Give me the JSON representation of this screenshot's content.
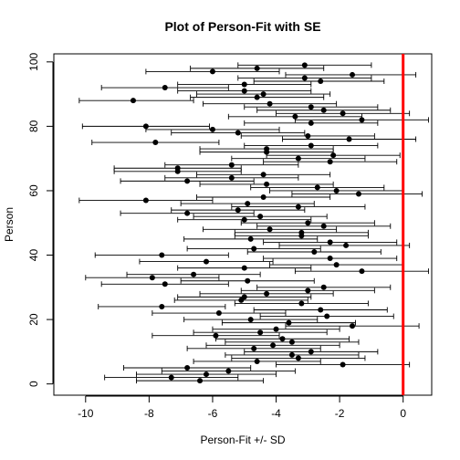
{
  "chart_data": {
    "type": "scatter",
    "title": "Plot of Person-Fit with SE",
    "xlabel": "Person-Fit +/- SD",
    "ylabel": "Person",
    "xlim": [
      -11,
      0.9
    ],
    "ylim": [
      -3.5,
      102.5
    ],
    "xticks": [
      -10,
      -8,
      -6,
      -4,
      -2,
      0
    ],
    "yticks": [
      0,
      20,
      40,
      60,
      80,
      100
    ],
    "reference_line": {
      "x": 0,
      "color": "#ff0000"
    },
    "grid": false,
    "errorbar_color": "#000000",
    "point_color": "#000000",
    "points": [
      {
        "person": 1,
        "fit": -6.4,
        "lo": -8.4,
        "hi": -4.4
      },
      {
        "person": 2,
        "fit": -7.3,
        "lo": -9.4,
        "hi": -5.2
      },
      {
        "person": 3,
        "fit": -6.2,
        "lo": -8.4,
        "hi": -4.0
      },
      {
        "person": 4,
        "fit": -5.5,
        "lo": -7.6,
        "hi": -3.4
      },
      {
        "person": 5,
        "fit": -6.8,
        "lo": -8.8,
        "hi": -4.8
      },
      {
        "person": 6,
        "fit": -1.9,
        "lo": -4.0,
        "hi": 0.2
      },
      {
        "person": 7,
        "fit": -4.6,
        "lo": -6.6,
        "hi": -2.6
      },
      {
        "person": 8,
        "fit": -3.3,
        "lo": -5.4,
        "hi": -1.2
      },
      {
        "person": 9,
        "fit": -3.5,
        "lo": -5.6,
        "hi": -1.4
      },
      {
        "person": 10,
        "fit": -2.9,
        "lo": -5.0,
        "hi": -0.8
      },
      {
        "person": 11,
        "fit": -4.7,
        "lo": -6.8,
        "hi": -2.6
      },
      {
        "person": 12,
        "fit": -4.1,
        "lo": -6.2,
        "hi": -2.0
      },
      {
        "person": 13,
        "fit": -3.5,
        "lo": -5.6,
        "hi": -1.4
      },
      {
        "person": 14,
        "fit": -3.8,
        "lo": -5.9,
        "hi": -1.7
      },
      {
        "person": 15,
        "fit": -5.9,
        "lo": -7.9,
        "hi": -3.9
      },
      {
        "person": 16,
        "fit": -4.5,
        "lo": -6.6,
        "hi": -2.4
      },
      {
        "person": 17,
        "fit": -4.0,
        "lo": -6.0,
        "hi": -2.0
      },
      {
        "person": 18,
        "fit": -1.6,
        "lo": -3.7,
        "hi": 0.5
      },
      {
        "person": 19,
        "fit": -3.6,
        "lo": -5.7,
        "hi": -1.5
      },
      {
        "person": 20,
        "fit": -4.8,
        "lo": -6.9,
        "hi": -2.7
      },
      {
        "person": 21,
        "fit": -2.4,
        "lo": -4.5,
        "hi": -0.3
      },
      {
        "person": 22,
        "fit": -5.8,
        "lo": -7.9,
        "hi": -3.7
      },
      {
        "person": 23,
        "fit": -2.6,
        "lo": -4.7,
        "hi": -0.5
      },
      {
        "person": 24,
        "fit": -7.6,
        "lo": -9.6,
        "hi": -5.6
      },
      {
        "person": 25,
        "fit": -3.2,
        "lo": -5.3,
        "hi": -1.1
      },
      {
        "person": 26,
        "fit": -5.1,
        "lo": -7.2,
        "hi": -3.0
      },
      {
        "person": 27,
        "fit": -5.0,
        "lo": -7.1,
        "hi": -2.9
      },
      {
        "person": 28,
        "fit": -4.3,
        "lo": -6.4,
        "hi": -2.2
      },
      {
        "person": 29,
        "fit": -3.0,
        "lo": -5.1,
        "hi": -0.9
      },
      {
        "person": 30,
        "fit": -2.5,
        "lo": -4.6,
        "hi": -0.4
      },
      {
        "person": 31,
        "fit": -7.5,
        "lo": -9.5,
        "hi": -5.5
      },
      {
        "person": 32,
        "fit": -4.9,
        "lo": -7.0,
        "hi": -2.8
      },
      {
        "person": 33,
        "fit": -7.9,
        "lo": -10.0,
        "hi": -5.8
      },
      {
        "person": 34,
        "fit": -6.6,
        "lo": -8.7,
        "hi": -4.5
      },
      {
        "person": 35,
        "fit": -1.3,
        "lo": -3.4,
        "hi": 0.8
      },
      {
        "person": 36,
        "fit": -5.0,
        "lo": -7.1,
        "hi": -2.9
      },
      {
        "person": 37,
        "fit": -2.1,
        "lo": -4.2,
        "hi": 0.0
      },
      {
        "person": 38,
        "fit": -6.2,
        "lo": -8.3,
        "hi": -4.1
      },
      {
        "person": 39,
        "fit": -2.3,
        "lo": -4.4,
        "hi": -0.2
      },
      {
        "person": 40,
        "fit": -7.6,
        "lo": -9.7,
        "hi": -5.5
      },
      {
        "person": 41,
        "fit": -2.8,
        "lo": -4.9,
        "hi": -0.7
      },
      {
        "person": 42,
        "fit": -4.7,
        "lo": -6.8,
        "hi": -2.6
      },
      {
        "person": 43,
        "fit": -1.8,
        "lo": -3.9,
        "hi": 0.2
      },
      {
        "person": 44,
        "fit": -2.3,
        "lo": -4.4,
        "hi": -0.2
      },
      {
        "person": 45,
        "fit": -4.8,
        "lo": -6.9,
        "hi": -2.7
      },
      {
        "person": 46,
        "fit": -3.2,
        "lo": -5.3,
        "hi": -1.1
      },
      {
        "person": 47,
        "fit": -3.2,
        "lo": -5.3,
        "hi": -1.1
      },
      {
        "person": 48,
        "fit": -4.2,
        "lo": -6.3,
        "hi": -2.1
      },
      {
        "person": 49,
        "fit": -2.5,
        "lo": -4.6,
        "hi": -0.4
      },
      {
        "person": 50,
        "fit": -3.0,
        "lo": -5.1,
        "hi": -0.9
      },
      {
        "person": 51,
        "fit": -5.0,
        "lo": -7.1,
        "hi": -2.9
      },
      {
        "person": 52,
        "fit": -4.5,
        "lo": -6.6,
        "hi": -2.4
      },
      {
        "person": 53,
        "fit": -6.8,
        "lo": -8.9,
        "hi": -4.7
      },
      {
        "person": 54,
        "fit": -5.2,
        "lo": -7.3,
        "hi": -3.1
      },
      {
        "person": 55,
        "fit": -3.3,
        "lo": -5.4,
        "hi": -1.2
      },
      {
        "person": 56,
        "fit": -4.9,
        "lo": -7.0,
        "hi": -2.8
      },
      {
        "person": 57,
        "fit": -8.1,
        "lo": -10.2,
        "hi": -6.0
      },
      {
        "person": 58,
        "fit": -4.4,
        "lo": -6.5,
        "hi": -2.3
      },
      {
        "person": 59,
        "fit": -1.4,
        "lo": -3.5,
        "hi": 0.6
      },
      {
        "person": 60,
        "fit": -2.1,
        "lo": -4.2,
        "hi": 0.0
      },
      {
        "person": 61,
        "fit": -2.7,
        "lo": -4.8,
        "hi": -0.6
      },
      {
        "person": 62,
        "fit": -4.3,
        "lo": -6.4,
        "hi": -2.2
      },
      {
        "person": 63,
        "fit": -6.8,
        "lo": -8.9,
        "hi": -4.7
      },
      {
        "person": 64,
        "fit": -5.4,
        "lo": -7.5,
        "hi": -3.3
      },
      {
        "person": 65,
        "fit": -4.4,
        "lo": -6.5,
        "hi": -2.3
      },
      {
        "person": 66,
        "fit": -7.1,
        "lo": -9.1,
        "hi": -5.1
      },
      {
        "person": 67,
        "fit": -7.1,
        "lo": -9.1,
        "hi": -5.1
      },
      {
        "person": 68,
        "fit": -5.4,
        "lo": -7.5,
        "hi": -3.3
      },
      {
        "person": 69,
        "fit": -2.3,
        "lo": -4.4,
        "hi": -0.2
      },
      {
        "person": 70,
        "fit": -3.3,
        "lo": -5.4,
        "hi": -1.2
      },
      {
        "person": 71,
        "fit": -2.2,
        "lo": -4.3,
        "hi": -0.1
      },
      {
        "person": 72,
        "fit": -4.3,
        "lo": -6.4,
        "hi": -2.2
      },
      {
        "person": 73,
        "fit": -4.3,
        "lo": -6.4,
        "hi": -2.2
      },
      {
        "person": 74,
        "fit": -2.9,
        "lo": -5.0,
        "hi": -0.8
      },
      {
        "person": 75,
        "fit": -7.8,
        "lo": -9.8,
        "hi": -5.8
      },
      {
        "person": 76,
        "fit": -1.7,
        "lo": -3.8,
        "hi": 0.4
      },
      {
        "person": 77,
        "fit": -3.0,
        "lo": -5.1,
        "hi": -0.9
      },
      {
        "person": 78,
        "fit": -5.2,
        "lo": -7.3,
        "hi": -3.1
      },
      {
        "person": 79,
        "fit": -6.0,
        "lo": -8.1,
        "hi": -3.9
      },
      {
        "person": 80,
        "fit": -8.1,
        "lo": -10.1,
        "hi": -6.1
      },
      {
        "person": 81,
        "fit": -2.9,
        "lo": -5.0,
        "hi": -0.8
      },
      {
        "person": 82,
        "fit": -1.3,
        "lo": -3.4,
        "hi": 0.8
      },
      {
        "person": 83,
        "fit": -3.4,
        "lo": -5.5,
        "hi": -1.3
      },
      {
        "person": 84,
        "fit": -1.9,
        "lo": -4.0,
        "hi": 0.2
      },
      {
        "person": 85,
        "fit": -2.5,
        "lo": -4.6,
        "hi": -0.4
      },
      {
        "person": 86,
        "fit": -2.9,
        "lo": -5.0,
        "hi": -0.8
      },
      {
        "person": 87,
        "fit": -4.2,
        "lo": -6.3,
        "hi": -2.1
      },
      {
        "person": 88,
        "fit": -8.5,
        "lo": -10.2,
        "hi": -6.6
      },
      {
        "person": 89,
        "fit": -4.6,
        "lo": -6.7,
        "hi": -2.5
      },
      {
        "person": 90,
        "fit": -4.4,
        "lo": -6.5,
        "hi": -2.3
      },
      {
        "person": 91,
        "fit": -5.0,
        "lo": -7.1,
        "hi": -2.9
      },
      {
        "person": 92,
        "fit": -7.5,
        "lo": -9.5,
        "hi": -5.5
      },
      {
        "person": 93,
        "fit": -5.0,
        "lo": -7.1,
        "hi": -2.9
      },
      {
        "person": 94,
        "fit": -2.6,
        "lo": -4.7,
        "hi": -0.6
      },
      {
        "person": 95,
        "fit": -3.1,
        "lo": -5.2,
        "hi": -1.0
      },
      {
        "person": 96,
        "fit": -1.6,
        "lo": -3.7,
        "hi": 0.4
      },
      {
        "person": 97,
        "fit": -6.0,
        "lo": -8.1,
        "hi": -3.9
      },
      {
        "person": 98,
        "fit": -4.6,
        "lo": -6.7,
        "hi": -2.5
      },
      {
        "person": 99,
        "fit": -3.1,
        "lo": -5.2,
        "hi": -1.0
      }
    ]
  }
}
